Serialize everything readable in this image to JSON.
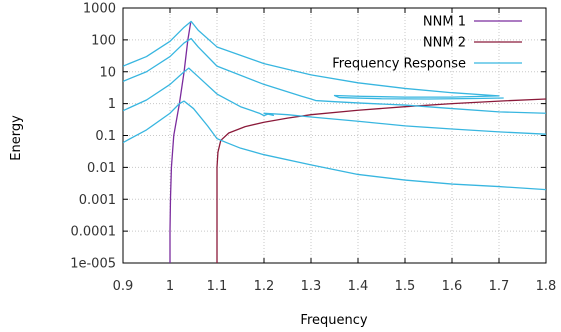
{
  "chart_data": {
    "type": "line",
    "xlabel": "Frequency",
    "ylabel": "Energy",
    "xlim": [
      0.9,
      1.8
    ],
    "ylim": [
      1e-05,
      1000
    ],
    "y_scale": "log",
    "grid": true,
    "legend_position": "top-right",
    "x_ticks": [
      "0.9",
      "1",
      "1.1",
      "1.2",
      "1.3",
      "1.4",
      "1.5",
      "1.6",
      "1.7",
      "1.8"
    ],
    "y_ticks": [
      "1e-005",
      "0.0001",
      "0.001",
      "0.01",
      "0.1",
      "1",
      "10",
      "100",
      "1000"
    ],
    "series": [
      {
        "name": "NNM 1",
        "color": "#7b2c9e",
        "points": [
          [
            1.0,
            1e-05
          ],
          [
            1.0,
            0.0001
          ],
          [
            1.001,
            0.001
          ],
          [
            1.003,
            0.01
          ],
          [
            1.008,
            0.1
          ],
          [
            1.02,
            1
          ],
          [
            1.03,
            10
          ],
          [
            1.038,
            100
          ],
          [
            1.044,
            350
          ]
        ]
      },
      {
        "name": "NNM 2",
        "color": "#8b1a3a",
        "points": [
          [
            1.1,
            1e-05
          ],
          [
            1.1,
            0.0001
          ],
          [
            1.1,
            0.001
          ],
          [
            1.1,
            0.01
          ],
          [
            1.102,
            0.03
          ],
          [
            1.108,
            0.07
          ],
          [
            1.125,
            0.12
          ],
          [
            1.16,
            0.19
          ],
          [
            1.2,
            0.26
          ],
          [
            1.25,
            0.35
          ],
          [
            1.3,
            0.45
          ],
          [
            1.4,
            0.62
          ],
          [
            1.5,
            0.8
          ],
          [
            1.6,
            1.0
          ],
          [
            1.7,
            1.2
          ],
          [
            1.8,
            1.4
          ]
        ]
      },
      {
        "name": "Frequency Response",
        "color": "#38b6e0",
        "curves": [
          [
            [
              0.9,
              15
            ],
            [
              0.95,
              30
            ],
            [
              1.0,
              90
            ],
            [
              1.03,
              250
            ],
            [
              1.045,
              380
            ],
            [
              1.06,
              200
            ],
            [
              1.1,
              60
            ],
            [
              1.2,
              18
            ],
            [
              1.3,
              8
            ],
            [
              1.4,
              4.5
            ],
            [
              1.5,
              3
            ],
            [
              1.6,
              2.2
            ],
            [
              1.7,
              1.75
            ],
            [
              1.6,
              1.6
            ],
            [
              1.5,
              1.6
            ],
            [
              1.4,
              1.7
            ],
            [
              1.35,
              1.8
            ],
            [
              1.36,
              1.55
            ],
            [
              1.45,
              1.42
            ],
            [
              1.55,
              1.4
            ],
            [
              1.65,
              1.45
            ],
            [
              1.71,
              1.5
            ]
          ],
          [
            [
              0.9,
              5
            ],
            [
              0.95,
              10
            ],
            [
              1.0,
              30
            ],
            [
              1.03,
              80
            ],
            [
              1.045,
              110
            ],
            [
              1.06,
              60
            ],
            [
              1.1,
              15
            ],
            [
              1.2,
              4
            ],
            [
              1.28,
              1.7
            ],
            [
              1.3,
              1.4
            ],
            [
              1.31,
              1.25
            ],
            [
              1.35,
              1.15
            ],
            [
              1.4,
              1.05
            ],
            [
              1.5,
              0.9
            ],
            [
              1.6,
              0.7
            ],
            [
              1.7,
              0.55
            ],
            [
              1.8,
              0.5
            ]
          ],
          [
            [
              0.9,
              0.6
            ],
            [
              0.95,
              1.3
            ],
            [
              1.0,
              4
            ],
            [
              1.03,
              10
            ],
            [
              1.04,
              13
            ],
            [
              1.06,
              7
            ],
            [
              1.1,
              2
            ],
            [
              1.15,
              0.8
            ],
            [
              1.19,
              0.5
            ],
            [
              1.2,
              0.42
            ],
            [
              1.21,
              0.48
            ],
            [
              1.22,
              0.43
            ],
            [
              1.2,
              0.5
            ],
            [
              1.25,
              0.45
            ],
            [
              1.3,
              0.38
            ],
            [
              1.4,
              0.28
            ],
            [
              1.5,
              0.2
            ],
            [
              1.6,
              0.16
            ],
            [
              1.7,
              0.13
            ],
            [
              1.8,
              0.11
            ]
          ],
          [
            [
              0.9,
              0.06
            ],
            [
              0.95,
              0.15
            ],
            [
              1.0,
              0.5
            ],
            [
              1.02,
              1.0
            ],
            [
              1.03,
              1.2
            ],
            [
              1.05,
              0.7
            ],
            [
              1.08,
              0.2
            ],
            [
              1.1,
              0.08
            ],
            [
              1.12,
              0.06
            ],
            [
              1.15,
              0.04
            ],
            [
              1.2,
              0.025
            ],
            [
              1.3,
              0.012
            ],
            [
              1.4,
              0.006
            ],
            [
              1.5,
              0.004
            ],
            [
              1.6,
              0.003
            ],
            [
              1.7,
              0.0025
            ],
            [
              1.8,
              0.002
            ]
          ]
        ]
      }
    ]
  }
}
